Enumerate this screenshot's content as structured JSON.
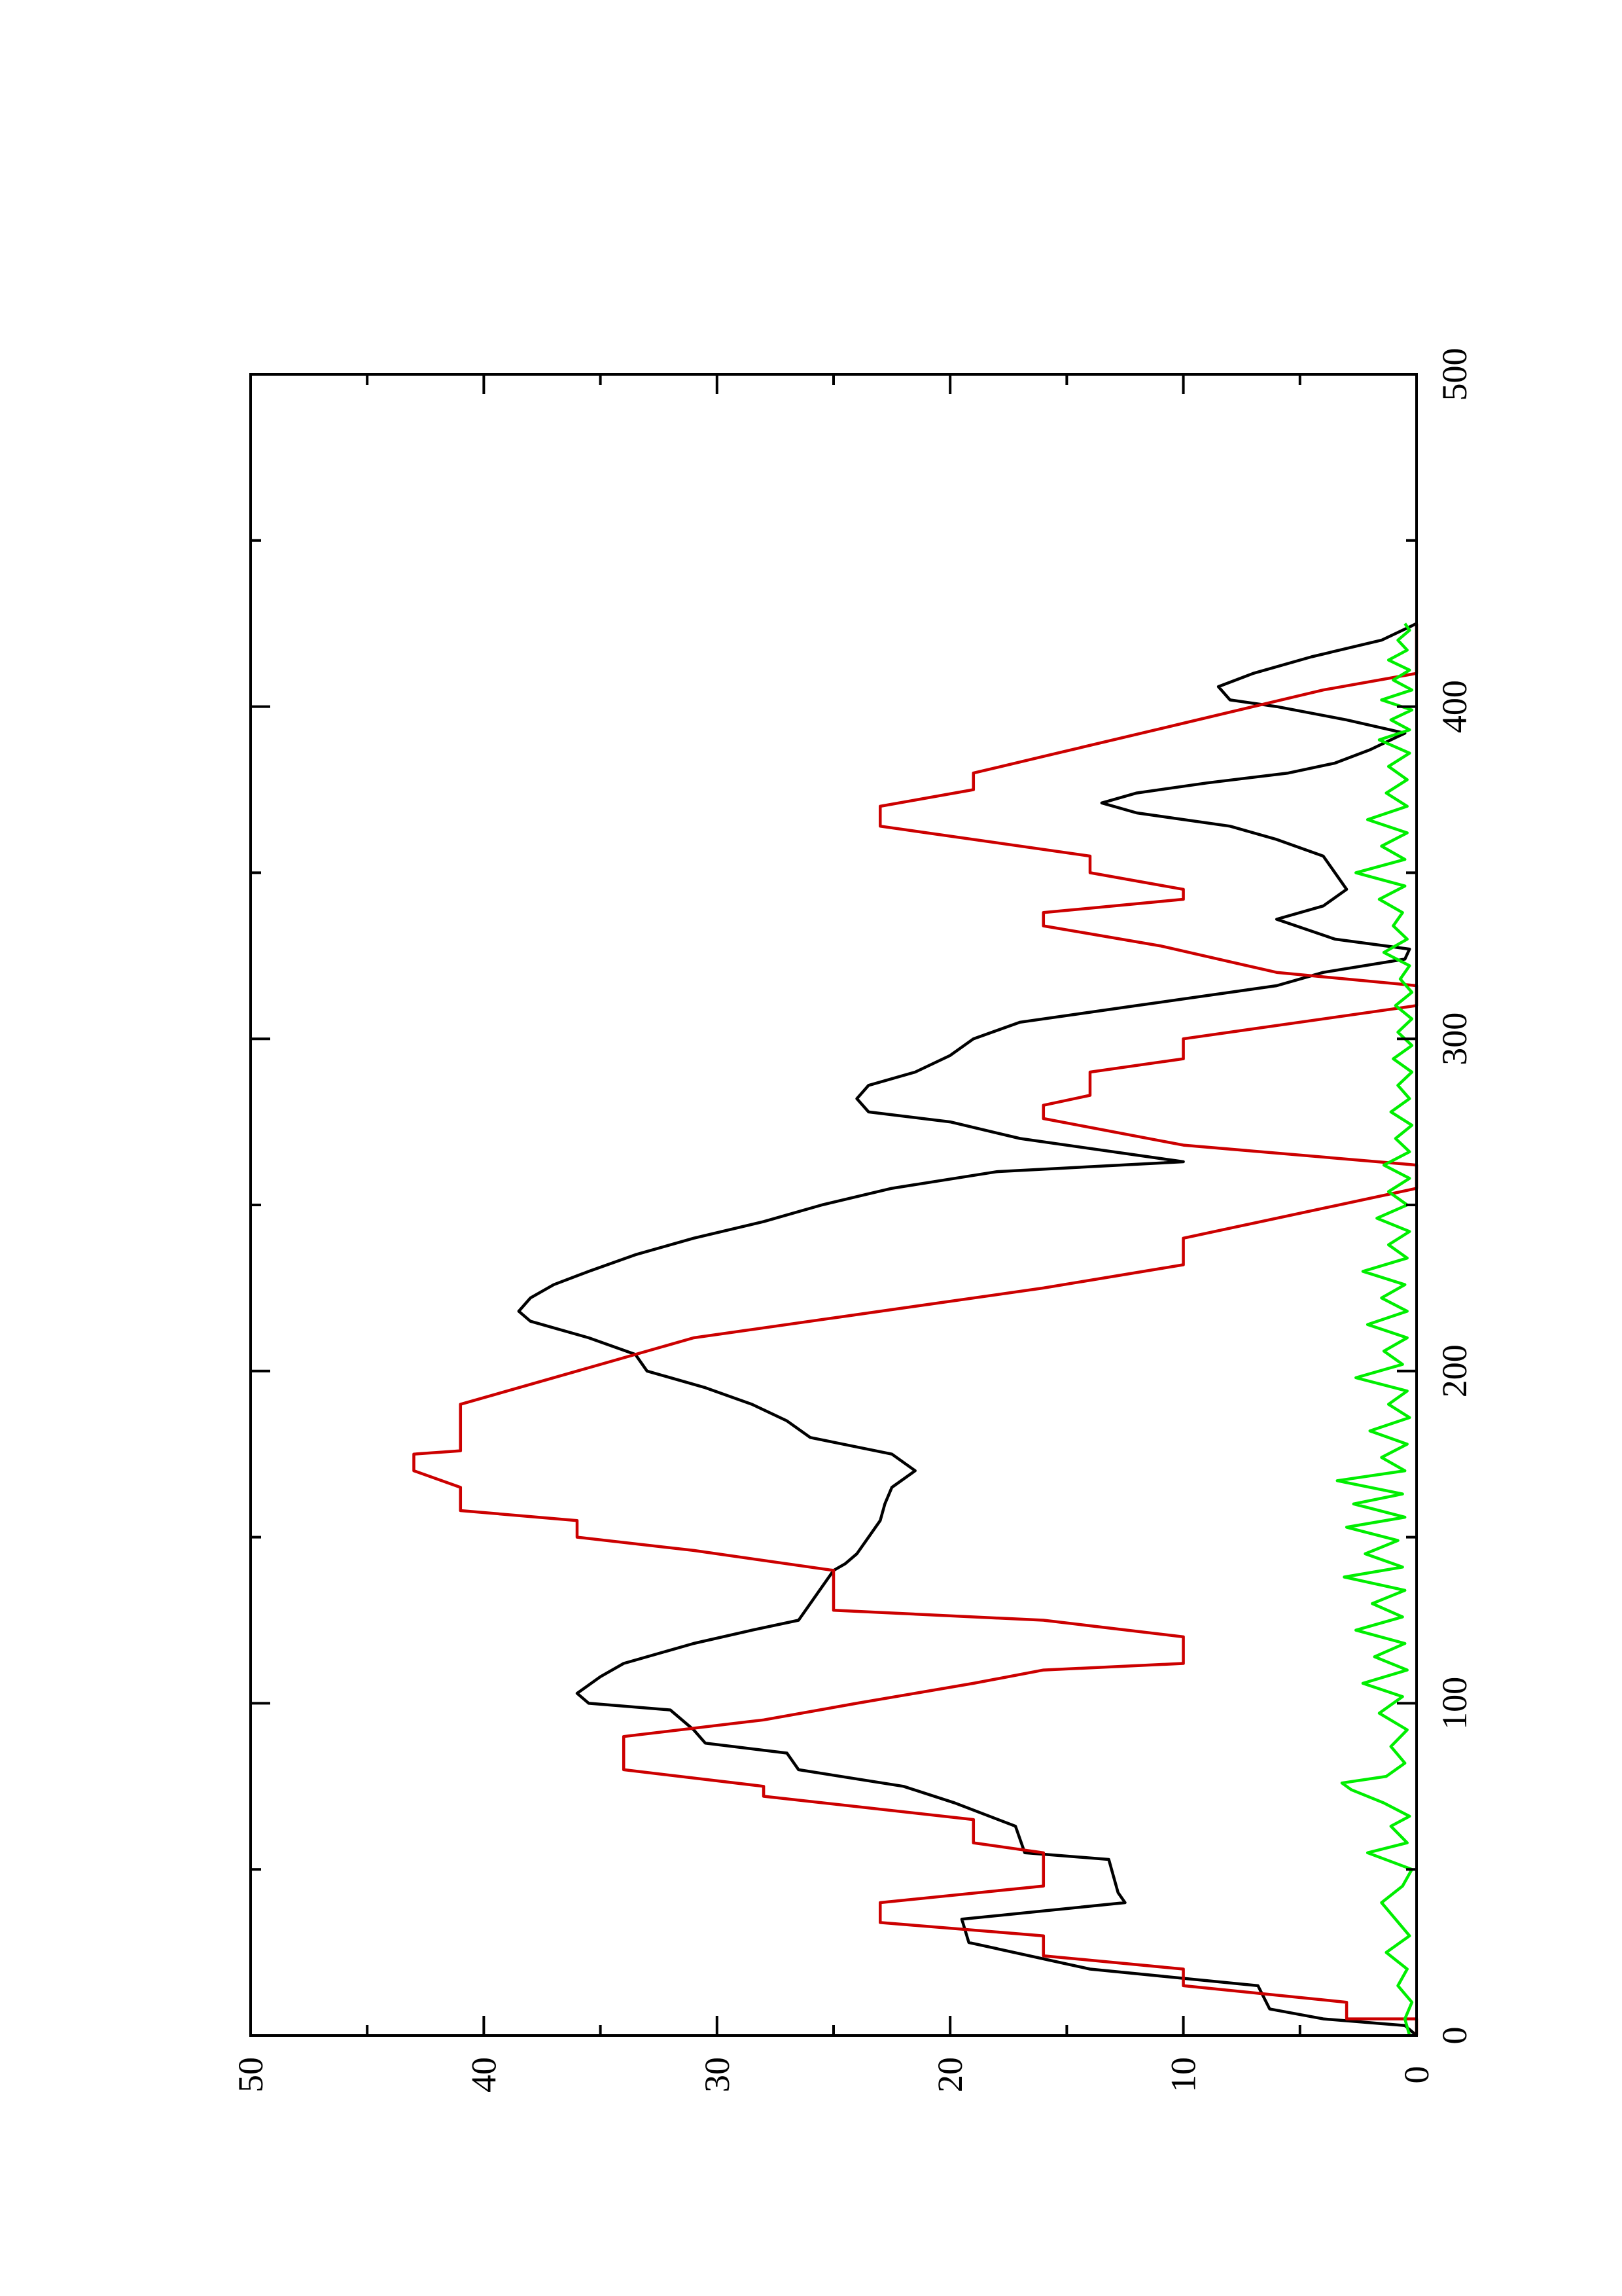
{
  "chart_data": {
    "type": "line",
    "title": "",
    "xlabel": "",
    "ylabel": "",
    "xlim": [
      0,
      500
    ],
    "ylim": [
      0,
      50
    ],
    "x_ticks": [
      0,
      100,
      200,
      300,
      400,
      500
    ],
    "y_ticks": [
      0,
      10,
      20,
      30,
      40,
      50
    ],
    "grid": false,
    "legend": "none",
    "orientation": "rotated-90-ccw",
    "series": [
      {
        "color": "#000000",
        "points": [
          [
            0,
            0
          ],
          [
            3,
            0.5
          ],
          [
            5,
            4
          ],
          [
            8,
            6.3
          ],
          [
            15,
            6.8
          ],
          [
            20,
            14
          ],
          [
            28,
            19.2
          ],
          [
            35,
            19.5
          ],
          [
            40,
            12.5
          ],
          [
            43,
            12.8
          ],
          [
            48,
            13
          ],
          [
            53,
            13.2
          ],
          [
            55,
            16.8
          ],
          [
            63,
            17.2
          ],
          [
            70,
            19.8
          ],
          [
            75,
            22
          ],
          [
            80,
            26.5
          ],
          [
            85,
            27
          ],
          [
            88,
            30.5
          ],
          [
            92,
            31
          ],
          [
            98,
            32
          ],
          [
            100,
            35.5
          ],
          [
            103,
            36
          ],
          [
            108,
            35
          ],
          [
            112,
            34
          ],
          [
            118,
            31
          ],
          [
            122,
            28.5
          ],
          [
            125,
            26.5
          ],
          [
            130,
            26
          ],
          [
            135,
            25.5
          ],
          [
            140,
            25
          ],
          [
            142,
            24.5
          ],
          [
            145,
            24
          ],
          [
            150,
            23.5
          ],
          [
            155,
            23
          ],
          [
            160,
            22.8
          ],
          [
            165,
            22.5
          ],
          [
            170,
            21.5
          ],
          [
            175,
            22.5
          ],
          [
            180,
            26
          ],
          [
            185,
            27
          ],
          [
            190,
            28.5
          ],
          [
            195,
            30.5
          ],
          [
            200,
            33
          ],
          [
            205,
            33.5
          ],
          [
            210,
            35.5
          ],
          [
            215,
            38
          ],
          [
            218,
            38.5
          ],
          [
            222,
            38
          ],
          [
            226,
            37
          ],
          [
            230,
            35.5
          ],
          [
            235,
            33.5
          ],
          [
            240,
            31
          ],
          [
            245,
            28
          ],
          [
            250,
            25.5
          ],
          [
            255,
            22.5
          ],
          [
            260,
            18
          ],
          [
            263,
            10
          ],
          [
            265,
            12
          ],
          [
            270,
            17
          ],
          [
            275,
            20
          ],
          [
            278,
            23.5
          ],
          [
            282,
            24
          ],
          [
            286,
            23.5
          ],
          [
            290,
            21.5
          ],
          [
            295,
            20
          ],
          [
            300,
            19
          ],
          [
            305,
            17
          ],
          [
            310,
            12
          ],
          [
            316,
            6
          ],
          [
            320,
            4
          ],
          [
            324,
            0.5
          ],
          [
            327,
            0.3
          ],
          [
            330,
            3.5
          ],
          [
            336,
            6
          ],
          [
            340,
            4
          ],
          [
            345,
            3
          ],
          [
            350,
            3.5
          ],
          [
            355,
            4
          ],
          [
            360,
            6
          ],
          [
            364,
            8
          ],
          [
            368,
            12
          ],
          [
            371,
            13.5
          ],
          [
            374,
            12
          ],
          [
            377,
            9
          ],
          [
            380,
            5.5
          ],
          [
            383,
            3.5
          ],
          [
            387,
            2
          ],
          [
            392,
            0.5
          ],
          [
            396,
            3
          ],
          [
            400,
            6
          ],
          [
            402,
            8
          ],
          [
            406,
            8.5
          ],
          [
            410,
            7
          ],
          [
            415,
            4.5
          ],
          [
            420,
            1.5
          ],
          [
            425,
            0
          ]
        ]
      },
      {
        "color": "#cc0000",
        "points": [
          [
            0,
            0
          ],
          [
            5,
            0
          ],
          [
            5,
            3
          ],
          [
            10,
            3
          ],
          [
            15,
            10
          ],
          [
            20,
            10
          ],
          [
            24,
            16
          ],
          [
            30,
            16
          ],
          [
            34,
            23
          ],
          [
            40,
            23
          ],
          [
            45,
            16
          ],
          [
            55,
            16
          ],
          [
            58,
            19
          ],
          [
            65,
            19
          ],
          [
            72,
            28
          ],
          [
            75,
            28
          ],
          [
            80,
            34
          ],
          [
            90,
            34
          ],
          [
            95,
            28
          ],
          [
            100,
            24
          ],
          [
            106,
            19
          ],
          [
            110,
            16
          ],
          [
            112,
            10
          ],
          [
            120,
            10
          ],
          [
            125,
            16
          ],
          [
            128,
            25
          ],
          [
            140,
            25
          ],
          [
            146,
            31
          ],
          [
            150,
            36
          ],
          [
            155,
            36
          ],
          [
            158,
            41
          ],
          [
            165,
            41
          ],
          [
            170,
            43
          ],
          [
            175,
            43
          ],
          [
            176,
            41
          ],
          [
            190,
            41
          ],
          [
            200,
            36
          ],
          [
            210,
            31
          ],
          [
            216,
            25
          ],
          [
            225,
            16
          ],
          [
            232,
            10
          ],
          [
            240,
            10
          ],
          [
            255,
            0
          ],
          [
            262,
            0
          ],
          [
            268,
            10
          ],
          [
            276,
            16
          ],
          [
            280,
            16
          ],
          [
            283,
            14
          ],
          [
            290,
            14
          ],
          [
            294,
            10
          ],
          [
            300,
            10
          ],
          [
            305,
            5
          ],
          [
            310,
            0
          ],
          [
            316,
            0
          ],
          [
            320,
            6
          ],
          [
            328,
            11
          ],
          [
            334,
            16
          ],
          [
            338,
            16
          ],
          [
            342,
            10
          ],
          [
            345,
            10
          ],
          [
            350,
            14
          ],
          [
            355,
            14
          ],
          [
            364,
            23
          ],
          [
            370,
            23
          ],
          [
            375,
            19
          ],
          [
            380,
            19
          ],
          [
            385,
            16
          ],
          [
            395,
            10
          ],
          [
            405,
            4
          ],
          [
            410,
            0
          ],
          [
            425,
            0
          ]
        ]
      },
      {
        "color": "#00ee00",
        "points": [
          [
            0,
            0.3
          ],
          [
            5,
            0.5
          ],
          [
            10,
            0.2
          ],
          [
            15,
            0.8
          ],
          [
            20,
            0.4
          ],
          [
            25,
            1.3
          ],
          [
            30,
            0.3
          ],
          [
            35,
            0.9
          ],
          [
            40,
            1.5
          ],
          [
            45,
            0.6
          ],
          [
            50,
            0.2
          ],
          [
            55,
            2.1
          ],
          [
            58,
            0.4
          ],
          [
            63,
            1.1
          ],
          [
            66,
            0.3
          ],
          [
            70,
            1.4
          ],
          [
            74,
            2.8
          ],
          [
            76,
            3.2
          ],
          [
            78,
            1.3
          ],
          [
            82,
            0.5
          ],
          [
            87,
            1.1
          ],
          [
            92,
            0.4
          ],
          [
            97,
            1.6
          ],
          [
            102,
            0.6
          ],
          [
            106,
            2.3
          ],
          [
            110,
            0.4
          ],
          [
            114,
            1.8
          ],
          [
            118,
            0.5
          ],
          [
            122,
            2.6
          ],
          [
            126,
            0.6
          ],
          [
            130,
            1.9
          ],
          [
            134,
            0.5
          ],
          [
            138,
            3.1
          ],
          [
            141,
            0.6
          ],
          [
            145,
            2.2
          ],
          [
            149,
            0.8
          ],
          [
            153,
            3.0
          ],
          [
            156,
            0.5
          ],
          [
            160,
            2.7
          ],
          [
            163,
            0.6
          ],
          [
            167,
            3.4
          ],
          [
            170,
            0.5
          ],
          [
            174,
            1.5
          ],
          [
            178,
            0.4
          ],
          [
            182,
            2.0
          ],
          [
            186,
            0.3
          ],
          [
            190,
            1.2
          ],
          [
            194,
            0.4
          ],
          [
            198,
            2.6
          ],
          [
            202,
            0.6
          ],
          [
            206,
            1.4
          ],
          [
            210,
            0.4
          ],
          [
            214,
            2.1
          ],
          [
            218,
            0.4
          ],
          [
            222,
            1.5
          ],
          [
            226,
            0.5
          ],
          [
            230,
            2.3
          ],
          [
            234,
            0.4
          ],
          [
            238,
            1.2
          ],
          [
            242,
            0.3
          ],
          [
            246,
            1.7
          ],
          [
            250,
            0.4
          ],
          [
            254,
            1.2
          ],
          [
            258,
            0.3
          ],
          [
            262,
            1.4
          ],
          [
            266,
            0.3
          ],
          [
            270,
            0.9
          ],
          [
            274,
            0.2
          ],
          [
            278,
            1.1
          ],
          [
            282,
            0.3
          ],
          [
            286,
            0.8
          ],
          [
            290,
            0.2
          ],
          [
            294,
            1.0
          ],
          [
            298,
            0.2
          ],
          [
            302,
            0.8
          ],
          [
            306,
            0.2
          ],
          [
            310,
            0.9
          ],
          [
            314,
            0.2
          ],
          [
            318,
            0.7
          ],
          [
            322,
            0.3
          ],
          [
            326,
            1.4
          ],
          [
            330,
            0.4
          ],
          [
            334,
            1.0
          ],
          [
            338,
            0.6
          ],
          [
            342,
            1.6
          ],
          [
            346,
            0.5
          ],
          [
            350,
            2.6
          ],
          [
            354,
            0.5
          ],
          [
            358,
            1.5
          ],
          [
            362,
            0.4
          ],
          [
            366,
            2.1
          ],
          [
            370,
            0.4
          ],
          [
            374,
            1.3
          ],
          [
            378,
            0.4
          ],
          [
            382,
            1.2
          ],
          [
            386,
            0.3
          ],
          [
            390,
            1.6
          ],
          [
            393,
            0.3
          ],
          [
            396,
            1.1
          ],
          [
            399,
            0.2
          ],
          [
            402,
            1.5
          ],
          [
            405,
            0.2
          ],
          [
            408,
            1.0
          ],
          [
            411,
            0.3
          ],
          [
            414,
            1.2
          ],
          [
            417,
            0.4
          ],
          [
            420,
            0.8
          ],
          [
            423,
            0.3
          ],
          [
            425,
            0.5
          ]
        ]
      }
    ]
  }
}
